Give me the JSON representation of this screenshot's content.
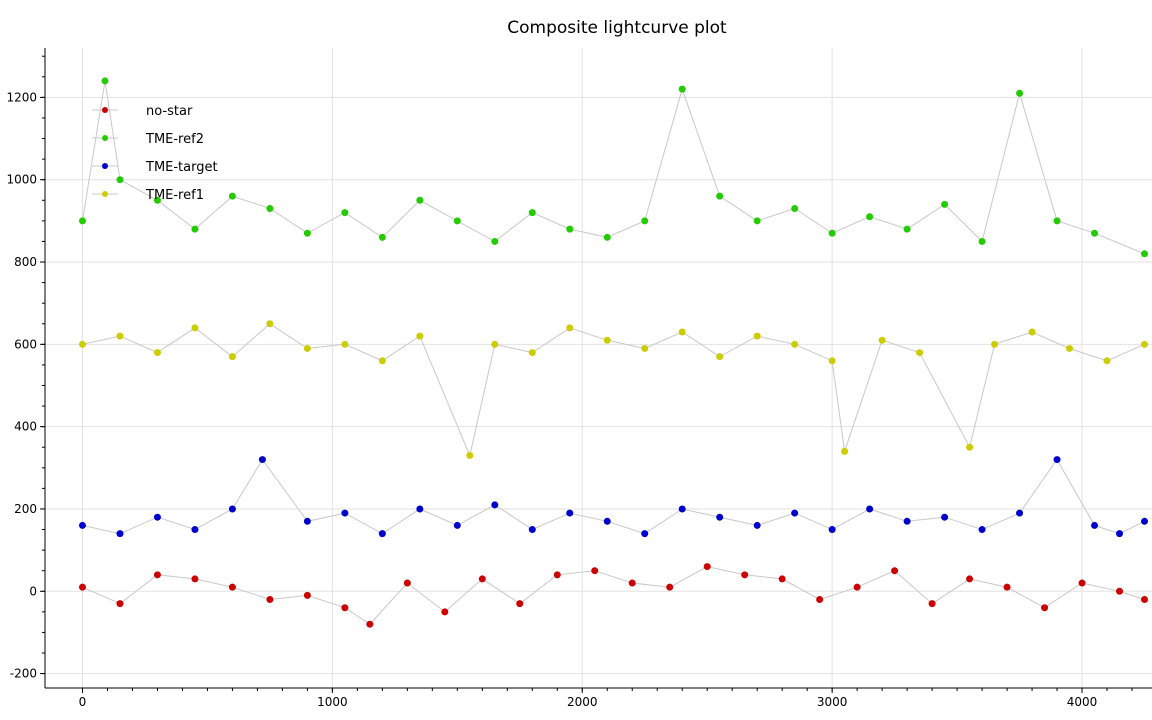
{
  "chart_data": {
    "type": "scatter",
    "title": "Composite lightcurve plot",
    "xlabel": "",
    "ylabel": "",
    "xlim": [
      -150,
      4280
    ],
    "ylim": [
      -235,
      1320
    ],
    "x_ticks": [
      0,
      1000,
      2000,
      3000,
      4000
    ],
    "y_ticks": [
      -200,
      0,
      200,
      400,
      600,
      800,
      1000,
      1200
    ],
    "grid": true,
    "legend_position": "top-left",
    "connecting_line_color": "#c8c8c8",
    "series": [
      {
        "name": "no-star",
        "color": "#cc0000",
        "values": [
          {
            "x": 0,
            "y": 10
          },
          {
            "x": 150,
            "y": -30
          },
          {
            "x": 300,
            "y": 40
          },
          {
            "x": 450,
            "y": 30
          },
          {
            "x": 600,
            "y": 10
          },
          {
            "x": 750,
            "y": -20
          },
          {
            "x": 900,
            "y": -10
          },
          {
            "x": 1050,
            "y": -40
          },
          {
            "x": 1150,
            "y": -80
          },
          {
            "x": 1300,
            "y": 20
          },
          {
            "x": 1450,
            "y": -50
          },
          {
            "x": 1600,
            "y": 30
          },
          {
            "x": 1750,
            "y": -30
          },
          {
            "x": 1900,
            "y": 40
          },
          {
            "x": 2050,
            "y": 50
          },
          {
            "x": 2200,
            "y": 20
          },
          {
            "x": 2350,
            "y": 10
          },
          {
            "x": 2500,
            "y": 60
          },
          {
            "x": 2650,
            "y": 40
          },
          {
            "x": 2800,
            "y": 30
          },
          {
            "x": 2950,
            "y": -20
          },
          {
            "x": 3100,
            "y": 10
          },
          {
            "x": 3250,
            "y": 50
          },
          {
            "x": 3400,
            "y": -30
          },
          {
            "x": 3550,
            "y": 30
          },
          {
            "x": 3700,
            "y": 10
          },
          {
            "x": 3850,
            "y": -40
          },
          {
            "x": 4000,
            "y": 20
          },
          {
            "x": 4150,
            "y": 0
          },
          {
            "x": 4250,
            "y": -20
          }
        ]
      },
      {
        "name": "TME-ref2",
        "color": "#22cc00",
        "values": [
          {
            "x": 0,
            "y": 900
          },
          {
            "x": 90,
            "y": 1240
          },
          {
            "x": 150,
            "y": 1000
          },
          {
            "x": 300,
            "y": 950
          },
          {
            "x": 450,
            "y": 880
          },
          {
            "x": 600,
            "y": 960
          },
          {
            "x": 750,
            "y": 930
          },
          {
            "x": 900,
            "y": 870
          },
          {
            "x": 1050,
            "y": 920
          },
          {
            "x": 1200,
            "y": 860
          },
          {
            "x": 1350,
            "y": 950
          },
          {
            "x": 1500,
            "y": 900
          },
          {
            "x": 1650,
            "y": 850
          },
          {
            "x": 1800,
            "y": 920
          },
          {
            "x": 1950,
            "y": 880
          },
          {
            "x": 2100,
            "y": 860
          },
          {
            "x": 2250,
            "y": 900
          },
          {
            "x": 2400,
            "y": 1220
          },
          {
            "x": 2550,
            "y": 960
          },
          {
            "x": 2700,
            "y": 900
          },
          {
            "x": 2850,
            "y": 930
          },
          {
            "x": 3000,
            "y": 870
          },
          {
            "x": 3150,
            "y": 910
          },
          {
            "x": 3300,
            "y": 880
          },
          {
            "x": 3450,
            "y": 940
          },
          {
            "x": 3600,
            "y": 850
          },
          {
            "x": 3750,
            "y": 1210
          },
          {
            "x": 3900,
            "y": 900
          },
          {
            "x": 4050,
            "y": 870
          },
          {
            "x": 4250,
            "y": 820
          }
        ]
      },
      {
        "name": "TME-target",
        "color": "#0000cc",
        "values": [
          {
            "x": 0,
            "y": 160
          },
          {
            "x": 150,
            "y": 140
          },
          {
            "x": 300,
            "y": 180
          },
          {
            "x": 450,
            "y": 150
          },
          {
            "x": 600,
            "y": 200
          },
          {
            "x": 720,
            "y": 320
          },
          {
            "x": 900,
            "y": 170
          },
          {
            "x": 1050,
            "y": 190
          },
          {
            "x": 1200,
            "y": 140
          },
          {
            "x": 1350,
            "y": 200
          },
          {
            "x": 1500,
            "y": 160
          },
          {
            "x": 1650,
            "y": 210
          },
          {
            "x": 1800,
            "y": 150
          },
          {
            "x": 1950,
            "y": 190
          },
          {
            "x": 2100,
            "y": 170
          },
          {
            "x": 2250,
            "y": 140
          },
          {
            "x": 2400,
            "y": 200
          },
          {
            "x": 2550,
            "y": 180
          },
          {
            "x": 2700,
            "y": 160
          },
          {
            "x": 2850,
            "y": 190
          },
          {
            "x": 3000,
            "y": 150
          },
          {
            "x": 3150,
            "y": 200
          },
          {
            "x": 3300,
            "y": 170
          },
          {
            "x": 3450,
            "y": 180
          },
          {
            "x": 3600,
            "y": 150
          },
          {
            "x": 3750,
            "y": 190
          },
          {
            "x": 3900,
            "y": 320
          },
          {
            "x": 4050,
            "y": 160
          },
          {
            "x": 4150,
            "y": 140
          },
          {
            "x": 4250,
            "y": 170
          }
        ]
      },
      {
        "name": "TME-ref1",
        "color": "#cccc00",
        "values": [
          {
            "x": 0,
            "y": 600
          },
          {
            "x": 150,
            "y": 620
          },
          {
            "x": 300,
            "y": 580
          },
          {
            "x": 450,
            "y": 640
          },
          {
            "x": 600,
            "y": 570
          },
          {
            "x": 750,
            "y": 650
          },
          {
            "x": 900,
            "y": 590
          },
          {
            "x": 1050,
            "y": 600
          },
          {
            "x": 1200,
            "y": 560
          },
          {
            "x": 1350,
            "y": 620
          },
          {
            "x": 1550,
            "y": 330
          },
          {
            "x": 1650,
            "y": 600
          },
          {
            "x": 1800,
            "y": 580
          },
          {
            "x": 1950,
            "y": 640
          },
          {
            "x": 2100,
            "y": 610
          },
          {
            "x": 2250,
            "y": 590
          },
          {
            "x": 2400,
            "y": 630
          },
          {
            "x": 2550,
            "y": 570
          },
          {
            "x": 2700,
            "y": 620
          },
          {
            "x": 2850,
            "y": 600
          },
          {
            "x": 3000,
            "y": 560
          },
          {
            "x": 3050,
            "y": 340
          },
          {
            "x": 3200,
            "y": 610
          },
          {
            "x": 3350,
            "y": 580
          },
          {
            "x": 3550,
            "y": 350
          },
          {
            "x": 3650,
            "y": 600
          },
          {
            "x": 3800,
            "y": 630
          },
          {
            "x": 3950,
            "y": 590
          },
          {
            "x": 4100,
            "y": 560
          },
          {
            "x": 4250,
            "y": 600
          }
        ]
      }
    ]
  }
}
